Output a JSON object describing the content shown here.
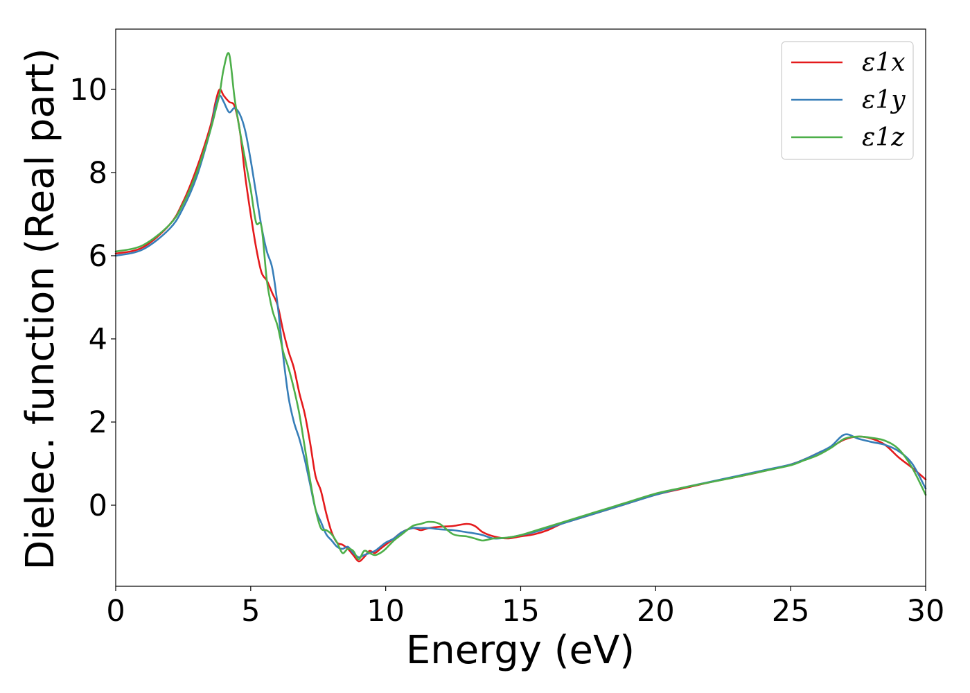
{
  "chart_data": {
    "type": "line",
    "title": "",
    "xlabel": "Energy (eV)",
    "ylabel": "Dielec. function (Real part)",
    "xlim": [
      0,
      30
    ],
    "ylim": [
      -1.95,
      11.45
    ],
    "x_ticks": [
      0,
      5,
      10,
      15,
      20,
      25,
      30
    ],
    "y_ticks": [
      0,
      2,
      4,
      6,
      8,
      10
    ],
    "grid": false,
    "legend_position": "top-right",
    "series": [
      {
        "name": "ε1x",
        "color": "#e41a1c",
        "x": [
          0,
          1,
          2,
          2.5,
          3,
          3.5,
          3.7,
          3.85,
          4.0,
          4.2,
          4.4,
          4.6,
          4.8,
          5.0,
          5.2,
          5.4,
          5.6,
          5.8,
          6.0,
          6.2,
          6.4,
          6.6,
          6.8,
          7.0,
          7.2,
          7.4,
          7.6,
          7.8,
          8.0,
          8.2,
          8.4,
          8.6,
          8.8,
          9.0,
          9.2,
          9.4,
          9.6,
          9.8,
          10.0,
          10.3,
          10.6,
          11.0,
          11.3,
          11.6,
          12.0,
          12.5,
          13.0,
          13.3,
          13.6,
          14.0,
          14.5,
          15.0,
          15.5,
          16.0,
          16.5,
          17.0,
          17.5,
          18.0,
          19.0,
          20.0,
          21.0,
          22.0,
          23.0,
          24.0,
          25.0,
          25.5,
          26.0,
          26.5,
          27.0,
          27.5,
          28.0,
          28.5,
          29.0,
          29.5,
          30.0
        ],
        "y": [
          6.05,
          6.2,
          6.75,
          7.3,
          8.1,
          9.1,
          9.7,
          10.0,
          9.85,
          9.7,
          9.6,
          9.0,
          7.9,
          7.0,
          6.2,
          5.6,
          5.4,
          5.1,
          4.8,
          4.2,
          3.7,
          3.3,
          2.7,
          2.2,
          1.5,
          0.7,
          0.35,
          -0.2,
          -0.65,
          -0.9,
          -0.95,
          -1.05,
          -1.2,
          -1.35,
          -1.25,
          -1.1,
          -1.15,
          -1.05,
          -0.95,
          -0.8,
          -0.65,
          -0.55,
          -0.6,
          -0.55,
          -0.52,
          -0.5,
          -0.45,
          -0.5,
          -0.65,
          -0.75,
          -0.8,
          -0.75,
          -0.7,
          -0.6,
          -0.45,
          -0.35,
          -0.25,
          -0.15,
          0.05,
          0.25,
          0.4,
          0.55,
          0.68,
          0.82,
          0.98,
          1.1,
          1.25,
          1.4,
          1.58,
          1.65,
          1.6,
          1.45,
          1.15,
          0.9,
          0.62
        ]
      },
      {
        "name": "ε1y",
        "color": "#377eb8",
        "x": [
          0,
          1,
          2,
          2.5,
          3,
          3.5,
          3.7,
          3.85,
          4.0,
          4.2,
          4.4,
          4.6,
          4.8,
          5.0,
          5.2,
          5.4,
          5.6,
          5.8,
          6.0,
          6.2,
          6.4,
          6.6,
          6.8,
          7.0,
          7.2,
          7.4,
          7.6,
          7.8,
          8.0,
          8.2,
          8.4,
          8.6,
          8.8,
          9.0,
          9.2,
          9.4,
          9.6,
          9.8,
          10.0,
          10.3,
          10.6,
          11.0,
          11.3,
          11.6,
          12.0,
          12.5,
          13.0,
          13.3,
          13.6,
          14.0,
          14.5,
          15.0,
          15.5,
          16.0,
          16.5,
          17.0,
          17.5,
          18.0,
          19.0,
          20.0,
          21.0,
          22.0,
          23.0,
          24.0,
          25.0,
          25.5,
          26.0,
          26.5,
          27.0,
          27.5,
          28.0,
          28.5,
          29.0,
          29.5,
          30.0
        ],
        "y": [
          6.0,
          6.15,
          6.65,
          7.15,
          7.9,
          9.0,
          9.6,
          9.85,
          9.7,
          9.45,
          9.55,
          9.4,
          9.0,
          8.3,
          7.5,
          6.7,
          6.1,
          5.7,
          4.8,
          3.6,
          2.6,
          2.0,
          1.6,
          1.1,
          0.5,
          -0.1,
          -0.4,
          -0.7,
          -0.85,
          -1.0,
          -1.05,
          -1.0,
          -1.15,
          -1.25,
          -1.2,
          -1.15,
          -1.1,
          -1.0,
          -0.9,
          -0.8,
          -0.65,
          -0.55,
          -0.55,
          -0.55,
          -0.58,
          -0.6,
          -0.65,
          -0.68,
          -0.72,
          -0.8,
          -0.78,
          -0.72,
          -0.65,
          -0.55,
          -0.45,
          -0.35,
          -0.25,
          -0.15,
          0.05,
          0.25,
          0.42,
          0.56,
          0.7,
          0.84,
          0.98,
          1.1,
          1.25,
          1.42,
          1.7,
          1.6,
          1.52,
          1.45,
          1.3,
          1.0,
          0.4
        ]
      },
      {
        "name": "ε1z",
        "color": "#4daf4a",
        "x": [
          0,
          1,
          2,
          2.5,
          3,
          3.5,
          3.7,
          3.85,
          4.0,
          4.2,
          4.4,
          4.6,
          4.8,
          5.0,
          5.2,
          5.4,
          5.6,
          5.8,
          6.0,
          6.2,
          6.4,
          6.6,
          6.8,
          7.0,
          7.2,
          7.4,
          7.6,
          7.8,
          8.0,
          8.2,
          8.4,
          8.6,
          8.8,
          9.0,
          9.2,
          9.4,
          9.6,
          9.8,
          10.0,
          10.3,
          10.6,
          11.0,
          11.3,
          11.6,
          12.0,
          12.5,
          13.0,
          13.3,
          13.6,
          14.0,
          14.5,
          15.0,
          15.5,
          16.0,
          16.5,
          17.0,
          17.5,
          18.0,
          19.0,
          20.0,
          21.0,
          22.0,
          23.0,
          24.0,
          25.0,
          25.5,
          26.0,
          26.5,
          27.0,
          27.5,
          28.0,
          28.5,
          29.0,
          29.5,
          30.0
        ],
        "y": [
          6.1,
          6.25,
          6.75,
          7.25,
          8.0,
          9.0,
          9.5,
          9.9,
          10.5,
          10.85,
          9.8,
          9.0,
          8.3,
          7.6,
          6.8,
          6.7,
          5.4,
          4.7,
          4.3,
          3.7,
          3.3,
          2.8,
          2.2,
          1.4,
          0.6,
          -0.1,
          -0.55,
          -0.6,
          -0.7,
          -0.9,
          -1.15,
          -1.05,
          -1.1,
          -1.3,
          -1.1,
          -1.15,
          -1.2,
          -1.15,
          -1.05,
          -0.85,
          -0.7,
          -0.5,
          -0.45,
          -0.4,
          -0.45,
          -0.7,
          -0.75,
          -0.8,
          -0.85,
          -0.8,
          -0.78,
          -0.72,
          -0.62,
          -0.52,
          -0.42,
          -0.32,
          -0.22,
          -0.12,
          0.08,
          0.28,
          0.42,
          0.55,
          0.68,
          0.82,
          0.96,
          1.08,
          1.2,
          1.38,
          1.6,
          1.65,
          1.62,
          1.55,
          1.35,
          0.9,
          0.25
        ]
      }
    ]
  }
}
